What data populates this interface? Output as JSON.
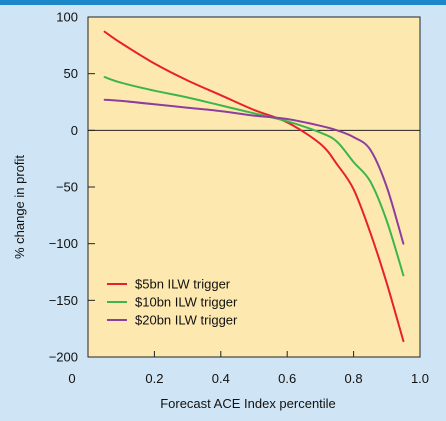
{
  "colors": {
    "background": "#cfe5f5",
    "plot_area": "#fde9b0",
    "top_bar": "#1b86c8",
    "axis": "#222222"
  },
  "chart_data": {
    "type": "line",
    "xlabel": "Forecast ACE Index percentile",
    "ylabel": "% change in profit",
    "xlim": [
      0,
      1.0
    ],
    "ylim": [
      -200,
      100
    ],
    "xticks": [
      0,
      0.2,
      0.4,
      0.6,
      0.8,
      1.0
    ],
    "xtick_labels": [
      "0",
      "0.2",
      "0.4",
      "0.6",
      "0.8",
      "1.0"
    ],
    "yticks": [
      100,
      50,
      0,
      -50,
      -100,
      -150,
      -200
    ],
    "ytick_labels": [
      "100",
      "50",
      "0",
      "−50",
      "−100",
      "−150",
      "−200"
    ],
    "zero_line": true,
    "grid": false,
    "legend_position": "bottom-left",
    "series": [
      {
        "name": "$5bn ILW trigger",
        "color": "#e8202a",
        "x": [
          0.05,
          0.1,
          0.2,
          0.3,
          0.4,
          0.5,
          0.6,
          0.7,
          0.75,
          0.8,
          0.85,
          0.9,
          0.95
        ],
        "y": [
          87,
          77,
          59,
          44,
          31,
          18,
          7,
          -12,
          -30,
          -52,
          -90,
          -135,
          -186
        ]
      },
      {
        "name": "$10bn ILW trigger",
        "color": "#3db54a",
        "x": [
          0.05,
          0.1,
          0.2,
          0.3,
          0.4,
          0.5,
          0.6,
          0.7,
          0.75,
          0.8,
          0.85,
          0.9,
          0.95
        ],
        "y": [
          47,
          42,
          35,
          29,
          22,
          15,
          8,
          -2,
          -10,
          -28,
          -45,
          -80,
          -128
        ]
      },
      {
        "name": "$20bn ILW trigger",
        "color": "#8d3e9c",
        "x": [
          0.05,
          0.1,
          0.2,
          0.3,
          0.4,
          0.5,
          0.6,
          0.7,
          0.75,
          0.8,
          0.85,
          0.9,
          0.95
        ],
        "y": [
          27,
          26,
          23,
          20,
          17,
          13,
          10,
          4,
          0,
          -6,
          -17,
          -50,
          -100
        ]
      }
    ]
  }
}
